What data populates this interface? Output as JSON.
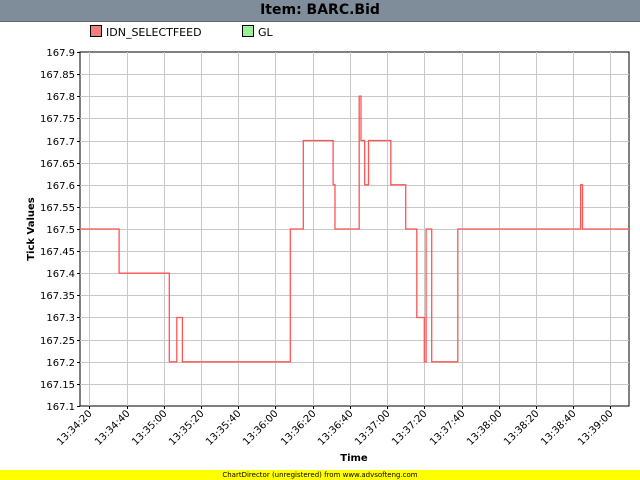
{
  "window": {
    "title": "Item: BARC.Bid"
  },
  "footer": {
    "text": "ChartDirector (unregistered) from www.advsofteng.com"
  },
  "legend": {
    "items": [
      {
        "label": "IDN_SELECTFEED",
        "color": "#f08080"
      },
      {
        "label": "GL",
        "color": "#98f098"
      }
    ]
  },
  "chart_data": {
    "type": "line",
    "title": "",
    "xlabel": "Time",
    "ylabel": "Tick Values",
    "ylim": [
      167.1,
      167.9
    ],
    "yticks": [
      167.1,
      167.15,
      167.2,
      167.25,
      167.3,
      167.35,
      167.4,
      167.45,
      167.5,
      167.55,
      167.6,
      167.65,
      167.7,
      167.75,
      167.8,
      167.85,
      167.9
    ],
    "xlim": [
      "13:34:15",
      "13:39:10"
    ],
    "xticks": [
      "13:34:20",
      "13:34:40",
      "13:35:00",
      "13:35:20",
      "13:35:40",
      "13:36:00",
      "13:36:20",
      "13:36:40",
      "13:37:00",
      "13:37:20",
      "13:37:40",
      "13:38:00",
      "13:38:20",
      "13:38:40",
      "13:39:00"
    ],
    "grid": true,
    "legend_position": "top-left",
    "series": [
      {
        "name": "IDN_SELECTFEED",
        "color": "#ff5555",
        "x": [
          "13:34:15",
          "13:34:36",
          "13:34:36",
          "13:35:03",
          "13:35:03",
          "13:35:07",
          "13:35:07",
          "13:35:10",
          "13:35:10",
          "13:36:08",
          "13:36:08",
          "13:36:15",
          "13:36:15",
          "13:36:31",
          "13:36:31",
          "13:36:32",
          "13:36:32",
          "13:36:45",
          "13:36:45",
          "13:36:46",
          "13:36:46",
          "13:36:48",
          "13:36:48",
          "13:36:50",
          "13:36:50",
          "13:37:02",
          "13:37:02",
          "13:37:10",
          "13:37:10",
          "13:37:16",
          "13:37:16",
          "13:37:20",
          "13:37:20",
          "13:37:21",
          "13:37:21",
          "13:37:24",
          "13:37:24",
          "13:37:38",
          "13:37:38",
          "13:38:44",
          "13:38:44",
          "13:38:45",
          "13:38:45",
          "13:39:10"
        ],
        "y": [
          167.5,
          167.5,
          167.4,
          167.4,
          167.2,
          167.2,
          167.3,
          167.3,
          167.2,
          167.2,
          167.5,
          167.5,
          167.7,
          167.7,
          167.6,
          167.6,
          167.5,
          167.5,
          167.8,
          167.8,
          167.7,
          167.7,
          167.6,
          167.6,
          167.7,
          167.7,
          167.6,
          167.6,
          167.5,
          167.5,
          167.3,
          167.3,
          167.2,
          167.2,
          167.5,
          167.5,
          167.2,
          167.2,
          167.5,
          167.5,
          167.6,
          167.6,
          167.5,
          167.5
        ]
      },
      {
        "name": "GL",
        "color": "#98f098",
        "x": [],
        "y": []
      }
    ]
  }
}
